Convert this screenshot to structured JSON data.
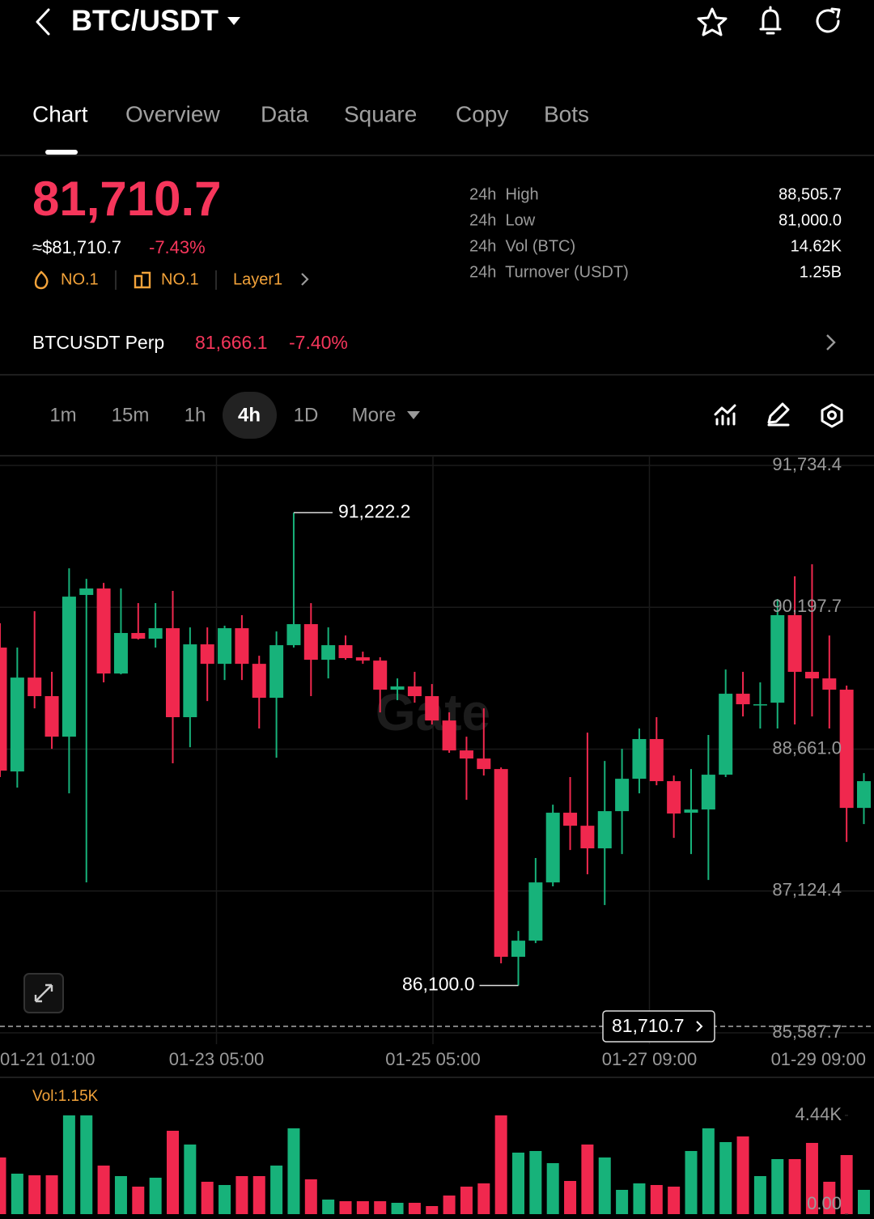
{
  "header": {
    "pair": "BTC/USDT"
  },
  "tabs": [
    "Chart",
    "Overview",
    "Data",
    "Square",
    "Copy",
    "Bots"
  ],
  "ticker": {
    "price": "81,710.7",
    "usd": "≈$81,710.7",
    "change": "-7.43%",
    "badges": [
      "NO.1",
      "NO.1",
      "Layer1"
    ],
    "stats": [
      {
        "label": "24h  High",
        "value": "88,505.7"
      },
      {
        "label": "24h  Low",
        "value": "81,000.0"
      },
      {
        "label": "24h  Vol (BTC)",
        "value": "14.62K"
      },
      {
        "label": "24h  Turnover (USDT)",
        "value": "1.25B"
      }
    ]
  },
  "perp": {
    "name": "BTCUSDT Perp",
    "price": "81,666.1",
    "change": "-7.40%"
  },
  "intervals": [
    "1m",
    "15m",
    "1h",
    "4h",
    "1D",
    "More"
  ],
  "chart_data": {
    "type": "candlestick",
    "watermark": "Gate",
    "up_color": "#17b27a",
    "down_color": "#f0284e",
    "open": [
      89761,
      88419,
      89436,
      89235,
      88796,
      90331,
      90401,
      89480,
      89919,
      89857,
      89971,
      89007,
      89796,
      89585,
      89971,
      89585,
      89217,
      89787,
      90015,
      89629,
      89787,
      89656,
      89620,
      89305,
      89340,
      89235,
      88971,
      88647,
      88559,
      88445,
      86411,
      86586,
      87217,
      87972,
      87831,
      87586,
      87989,
      88340,
      88770,
      88314,
      87972,
      88007,
      88384,
      89261,
      89138,
      89164,
      90112,
      89498,
      89427,
      89305,
      88024
    ],
    "high": [
      90024,
      89761,
      90155,
      89498,
      90620,
      90506,
      90462,
      90401,
      90243,
      90243,
      90375,
      89980,
      89980,
      89998,
      90112,
      89673,
      89936,
      91222.2,
      90243,
      89980,
      89892,
      89717,
      89656,
      89427,
      89498,
      89366,
      89059,
      88796,
      89103,
      88463,
      86691,
      87481,
      88059,
      88358,
      88840,
      88533,
      88664,
      88884,
      89007,
      88375,
      88445,
      88814,
      89524,
      89498,
      89384,
      90287,
      90533,
      90664,
      89892,
      89349,
      88401
    ],
    "low": [
      88358,
      88244,
      89103,
      88664,
      88182,
      87217,
      89384,
      89471,
      89848,
      89761,
      88507,
      88682,
      89182,
      89410,
      89410,
      88884,
      88568,
      89761,
      89235,
      89427,
      89629,
      89585,
      89059,
      89191,
      89164,
      88928,
      88621,
      88112,
      88375,
      86340,
      86100,
      86560,
      87174,
      87568,
      87305,
      86972,
      87524,
      88182,
      88270,
      87700,
      87524,
      87244,
      88358,
      89015,
      88884,
      88884,
      88928,
      89015,
      88884,
      87656,
      87849
    ],
    "close": [
      88428,
      89436,
      89235,
      88796,
      90313,
      90401,
      89480,
      89919,
      89857,
      89971,
      89007,
      89796,
      89585,
      89971,
      89585,
      89217,
      89787,
      90015,
      89629,
      89787,
      89647,
      89620,
      89305,
      89340,
      89235,
      88971,
      88647,
      88559,
      88445,
      86411,
      86586,
      87217,
      87972,
      87831,
      87586,
      87989,
      88340,
      88770,
      88314,
      87963,
      88007,
      88384,
      89261,
      89147,
      89147,
      90112,
      89498,
      89427,
      89305,
      88024,
      88314
    ],
    "ylim": [
      85464.6,
      91839.6
    ],
    "yticks": [
      {
        "value": 91734.4,
        "label": "91,734.4"
      },
      {
        "value": 90197.7,
        "label": "90,197.7"
      },
      {
        "value": 88661.0,
        "label": "88,661.0"
      },
      {
        "value": 87124.4,
        "label": "87,124.4"
      },
      {
        "value": 85587.7,
        "label": "85,587.7"
      }
    ],
    "annotations": [
      {
        "value": 91222.2,
        "label": "91,222.2"
      },
      {
        "value": 86100.0,
        "label": "86,100.0"
      }
    ],
    "last_price": {
      "value": 81710.7,
      "label": "81,710.7"
    },
    "x_labels": [
      "01-21 01:00",
      "01-23 05:00",
      "01-25 05:00",
      "01-27 09:00",
      "01-29 09:00"
    ],
    "volume": {
      "label": "Vol:1.15K",
      "values": [
        2548,
        1820,
        1747,
        1747,
        4440,
        4440,
        2184,
        1711,
        1237,
        1638,
        3749,
        3130,
        1456,
        1310,
        1711,
        1711,
        2184,
        3858,
        1565,
        655,
        582,
        582,
        582,
        510,
        510,
        364,
        837,
        1237,
        1383,
        4440,
        2766,
        2839,
        2293,
        1492,
        3130,
        2548,
        1092,
        1383,
        1310,
        1237,
        2839,
        3858,
        3239,
        3494,
        1711,
        2475,
        2475,
        3203,
        1456,
        2657,
        1092
      ],
      "ylim": [
        0,
        4440
      ],
      "yticks": [
        {
          "value": 4440,
          "label": "4.44K"
        },
        {
          "value": 0,
          "label": "0.00"
        }
      ]
    }
  }
}
